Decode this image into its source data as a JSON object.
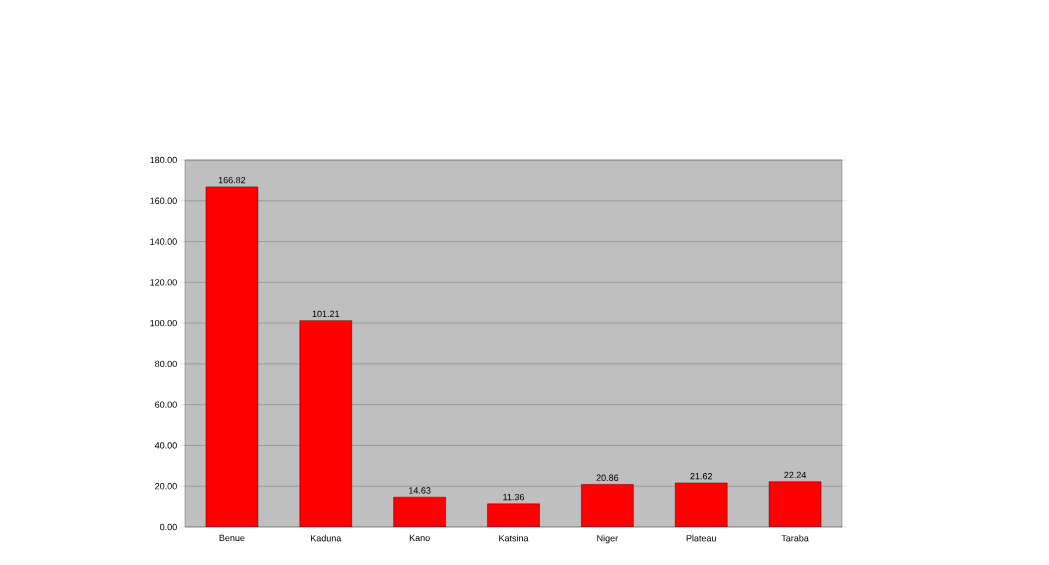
{
  "chart_data": {
    "type": "bar",
    "categories": [
      "Benue",
      "Kaduna",
      "Kano",
      "Katsina",
      "Niger",
      "Plateau",
      "Taraba"
    ],
    "values": [
      166.82,
      101.21,
      14.63,
      11.36,
      20.86,
      21.62,
      22.24
    ],
    "color": "#ff0000",
    "ylim": [
      0,
      180
    ],
    "yticks": [
      {
        "value": 0,
        "label": "0.00"
      },
      {
        "value": 20,
        "label": "20.00"
      },
      {
        "value": 40,
        "label": "40.00"
      },
      {
        "value": 60,
        "label": "60.00"
      },
      {
        "value": 80,
        "label": "80.00"
      },
      {
        "value": 100,
        "label": "100.00"
      },
      {
        "value": 120,
        "label": "120.00"
      },
      {
        "value": 140,
        "label": "140.00"
      },
      {
        "value": 160,
        "label": "160.00"
      },
      {
        "value": 180,
        "label": "180.00"
      }
    ],
    "grid": "y",
    "data_labels": true
  }
}
